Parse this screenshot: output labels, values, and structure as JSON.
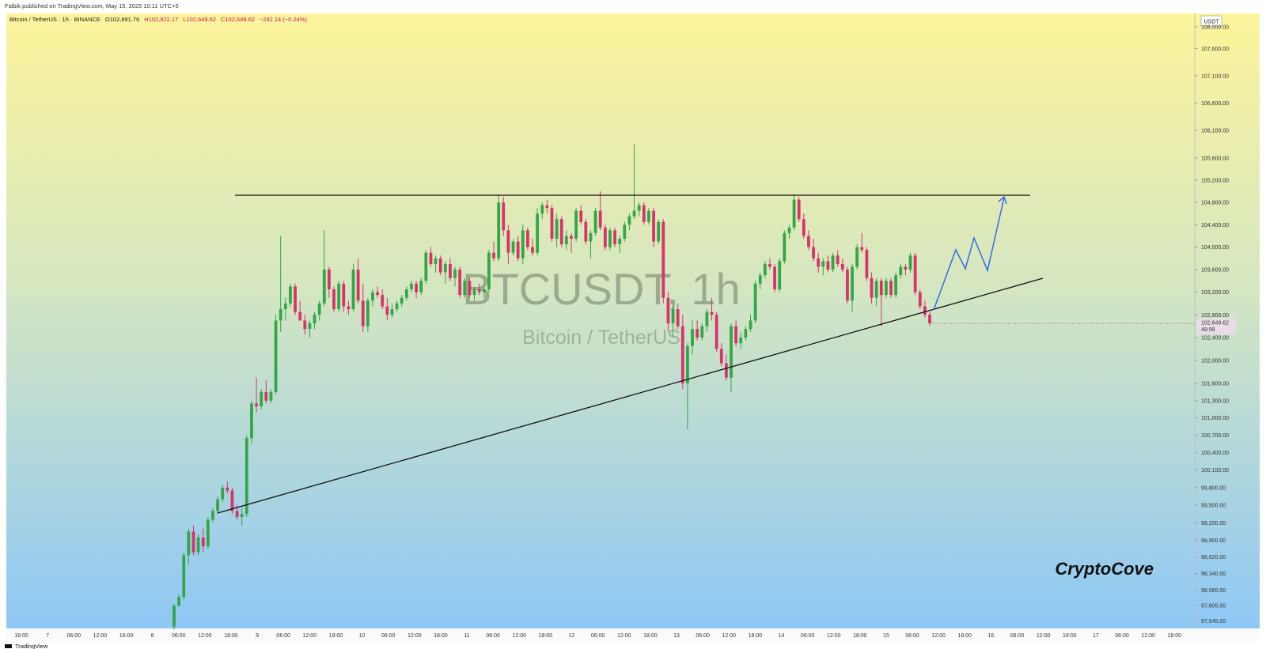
{
  "header": "Falbik published on TradingView.com, May 15, 2025 10:11 UTC+5",
  "footer": "TradingView",
  "chart_data": {
    "type": "candlestick",
    "title": "Bitcoin / TetherUS · 1h · BINANCE",
    "ohlc_text": [
      "O102,891.76",
      "H102,922.17",
      "L102,649.62",
      "C102,649.62",
      "−242.14 (−0.24%)"
    ],
    "watermark": "BTCUSDT, 1h",
    "watermark_sub": "Bitcoin / TetherUS",
    "brand": "CryptoCove",
    "currency": "USDT",
    "last_price": {
      "value": 102649.62,
      "label": "102,649.62"
    },
    "countdown": "48:58",
    "up_color": "#33a745",
    "down_color": "#d8336b",
    "log_scale": true,
    "ylim": [
      97420,
      108250
    ],
    "yticks": [
      {
        "value": 108000,
        "label": "108,000.00"
      },
      {
        "value": 107600,
        "label": "107,600.00"
      },
      {
        "value": 107100,
        "label": "107,100.00"
      },
      {
        "value": 106600,
        "label": "106,600.00"
      },
      {
        "value": 106100,
        "label": "106,100.00"
      },
      {
        "value": 105600,
        "label": "105,600.00"
      },
      {
        "value": 105200,
        "label": "105,200.00"
      },
      {
        "value": 104800,
        "label": "104,800.00"
      },
      {
        "value": 104400,
        "label": "104,400.00"
      },
      {
        "value": 104000,
        "label": "104,000.00"
      },
      {
        "value": 103600,
        "label": "103,600.00"
      },
      {
        "value": 103200,
        "label": "103,200.00"
      },
      {
        "value": 102800,
        "label": "102,800.00"
      },
      {
        "value": 102400,
        "label": "102,400.00"
      },
      {
        "value": 102000,
        "label": "102,000.00"
      },
      {
        "value": 101600,
        "label": "101,600.00"
      },
      {
        "value": 101300,
        "label": "101,300.00"
      },
      {
        "value": 101000,
        "label": "101,000.00"
      },
      {
        "value": 100700,
        "label": "100,700.00"
      },
      {
        "value": 100400,
        "label": "100,400.00"
      },
      {
        "value": 100100,
        "label": "100,100.00"
      },
      {
        "value": 99800,
        "label": "99,800.00"
      },
      {
        "value": 99500,
        "label": "99,500.00"
      },
      {
        "value": 99200,
        "label": "99,200.00"
      },
      {
        "value": 98900,
        "label": "98,900.00"
      },
      {
        "value": 98620,
        "label": "98,620.00"
      },
      {
        "value": 98340,
        "label": "98,340.00"
      },
      {
        "value": 98065,
        "label": "98,065.00"
      },
      {
        "value": 97805,
        "label": "97,805.00"
      },
      {
        "value": 97545,
        "label": "97,545.00"
      }
    ],
    "categories": [
      "18:00",
      "7",
      "06:00",
      "12:00",
      "18:00",
      "8",
      "06:00",
      "12:00",
      "18:00",
      "9",
      "06:00",
      "12:00",
      "18:00",
      "10",
      "06:00",
      "12:00",
      "18:00",
      "11",
      "06:00",
      "12:00",
      "18:00",
      "12",
      "06:00",
      "12:00",
      "18:00",
      "13",
      "06:00",
      "12:00",
      "18:00",
      "14",
      "06:00",
      "12:00",
      "18:00",
      "15",
      "06:00",
      "12:00",
      "18:00",
      "16",
      "06:00",
      "12:00",
      "18:00",
      "17",
      "06:00",
      "12:00",
      "18:00"
    ],
    "ohlc": [
      [
        97450,
        97830,
        97400,
        97800
      ],
      [
        97800,
        98000,
        97780,
        97950
      ],
      [
        97950,
        98700,
        97900,
        98650
      ],
      [
        98650,
        99100,
        98500,
        99050
      ],
      [
        99050,
        99150,
        98650,
        98700
      ],
      [
        98700,
        99000,
        98650,
        98950
      ],
      [
        98950,
        99100,
        98700,
        98800
      ],
      [
        98800,
        99300,
        98750,
        99250
      ],
      [
        99250,
        99450,
        99200,
        99400
      ],
      [
        99400,
        99650,
        99350,
        99600
      ],
      [
        99600,
        99850,
        99550,
        99800
      ],
      [
        99800,
        99900,
        99700,
        99750
      ],
      [
        99750,
        99800,
        99350,
        99400
      ],
      [
        99400,
        99500,
        99250,
        99300
      ],
      [
        99300,
        99450,
        99150,
        99350
      ],
      [
        99350,
        100700,
        99300,
        100650
      ],
      [
        100650,
        101300,
        100550,
        101250
      ],
      [
        101250,
        101700,
        101100,
        101200
      ],
      [
        101200,
        101500,
        101150,
        101450
      ],
      [
        101450,
        101650,
        101250,
        101300
      ],
      [
        101300,
        101500,
        101250,
        101450
      ],
      [
        101450,
        102800,
        101400,
        102700
      ],
      [
        102700,
        104200,
        102500,
        102900
      ],
      [
        102900,
        103100,
        102700,
        103000
      ],
      [
        103000,
        103350,
        102950,
        103300
      ],
      [
        103300,
        103350,
        102800,
        102850
      ],
      [
        102850,
        103050,
        102700,
        102700
      ],
      [
        102700,
        102800,
        102450,
        102550
      ],
      [
        102550,
        102700,
        102400,
        102650
      ],
      [
        102650,
        102850,
        102550,
        102800
      ],
      [
        102800,
        103050,
        102700,
        103000
      ],
      [
        103000,
        104300,
        102950,
        103600
      ],
      [
        103600,
        103650,
        103100,
        103250
      ],
      [
        103250,
        103300,
        102850,
        102900
      ],
      [
        102900,
        103400,
        102850,
        103350
      ],
      [
        103350,
        103400,
        102850,
        102950
      ],
      [
        102950,
        103050,
        102800,
        102900
      ],
      [
        102900,
        103700,
        102850,
        103600
      ],
      [
        103600,
        103800,
        103000,
        103050
      ],
      [
        103050,
        103350,
        102500,
        102600
      ],
      [
        102600,
        103100,
        102500,
        103050
      ],
      [
        103050,
        103250,
        102950,
        103200
      ],
      [
        103200,
        103300,
        103100,
        103150
      ],
      [
        103150,
        103250,
        102900,
        102950
      ],
      [
        102950,
        103100,
        102700,
        102800
      ],
      [
        102800,
        103000,
        102750,
        102900
      ],
      [
        102900,
        103050,
        102850,
        103000
      ],
      [
        103000,
        103150,
        102950,
        103100
      ],
      [
        103100,
        103300,
        103050,
        103250
      ],
      [
        103250,
        103400,
        103200,
        103350
      ],
      [
        103350,
        103400,
        103100,
        103200
      ],
      [
        103200,
        103450,
        103150,
        103400
      ],
      [
        103400,
        103950,
        103350,
        103900
      ],
      [
        103900,
        104000,
        103650,
        103700
      ],
      [
        103700,
        103850,
        103550,
        103800
      ],
      [
        103800,
        103850,
        103500,
        103550
      ],
      [
        103550,
        103750,
        103350,
        103700
      ],
      [
        103700,
        103800,
        103400,
        103450
      ],
      [
        103450,
        103650,
        103300,
        103600
      ],
      [
        103600,
        103650,
        103100,
        103150
      ],
      [
        103150,
        103450,
        103100,
        103400
      ],
      [
        103400,
        103450,
        103100,
        103150
      ],
      [
        103150,
        103300,
        103050,
        103250
      ],
      [
        103250,
        103350,
        103150,
        103200
      ],
      [
        103200,
        103300,
        103100,
        103250
      ],
      [
        103250,
        103950,
        103200,
        103900
      ],
      [
        103900,
        104100,
        103750,
        103800
      ],
      [
        103800,
        104950,
        103750,
        104800
      ],
      [
        104800,
        104900,
        104200,
        104300
      ],
      [
        104300,
        104400,
        103700,
        103900
      ],
      [
        103900,
        104150,
        103850,
        104100
      ],
      [
        104100,
        104200,
        103750,
        103800
      ],
      [
        103800,
        104400,
        103700,
        104300
      ],
      [
        104300,
        104350,
        103950,
        104000
      ],
      [
        104000,
        104150,
        103850,
        103900
      ],
      [
        103900,
        104700,
        103850,
        104600
      ],
      [
        104600,
        104800,
        104500,
        104750
      ],
      [
        104750,
        104850,
        104600,
        104700
      ],
      [
        104700,
        104750,
        104100,
        104150
      ],
      [
        104150,
        104600,
        104000,
        104500
      ],
      [
        104500,
        104550,
        104000,
        104050
      ],
      [
        104050,
        104300,
        103950,
        104200
      ],
      [
        104200,
        104250,
        103900,
        104150
      ],
      [
        104150,
        104700,
        104100,
        104650
      ],
      [
        104650,
        104750,
        104400,
        104450
      ],
      [
        104450,
        104500,
        104050,
        104100
      ],
      [
        104100,
        104300,
        103800,
        104250
      ],
      [
        104250,
        104700,
        104200,
        104650
      ],
      [
        104650,
        105000,
        104300,
        104350
      ],
      [
        104350,
        104400,
        103950,
        104000
      ],
      [
        104000,
        104350,
        103950,
        104300
      ],
      [
        104300,
        104350,
        104000,
        104050
      ],
      [
        104050,
        104200,
        103900,
        104150
      ],
      [
        104150,
        104450,
        104100,
        104400
      ],
      [
        104400,
        104600,
        104300,
        104550
      ],
      [
        104550,
        105850,
        104500,
        104650
      ],
      [
        104650,
        104800,
        104550,
        104750
      ],
      [
        104750,
        104800,
        104400,
        104450
      ],
      [
        104450,
        104700,
        104400,
        104650
      ],
      [
        104650,
        104700,
        104000,
        104100
      ],
      [
        104100,
        104500,
        104050,
        104450
      ],
      [
        104450,
        104500,
        103000,
        103100
      ],
      [
        103100,
        103200,
        102500,
        102650
      ],
      [
        102650,
        102950,
        102400,
        102900
      ],
      [
        102900,
        103000,
        102550,
        102600
      ],
      [
        102600,
        102800,
        101500,
        101600
      ],
      [
        101600,
        102300,
        100800,
        102250
      ],
      [
        102250,
        102700,
        102100,
        102550
      ],
      [
        102550,
        102700,
        102350,
        102400
      ],
      [
        102400,
        102650,
        102350,
        102600
      ],
      [
        102600,
        102900,
        102500,
        102850
      ],
      [
        102850,
        103100,
        102700,
        102800
      ],
      [
        102800,
        102850,
        102150,
        102200
      ],
      [
        102200,
        102300,
        101900,
        101950
      ],
      [
        101950,
        102100,
        101650,
        101700
      ],
      [
        101700,
        102650,
        101450,
        102600
      ],
      [
        102600,
        102700,
        102250,
        102300
      ],
      [
        102300,
        102500,
        102200,
        102400
      ],
      [
        102400,
        102600,
        102350,
        102550
      ],
      [
        102550,
        102800,
        102500,
        102700
      ],
      [
        102700,
        103400,
        102650,
        103350
      ],
      [
        103350,
        103550,
        103250,
        103500
      ],
      [
        103500,
        103750,
        103450,
        103700
      ],
      [
        103700,
        103800,
        103600,
        103650
      ],
      [
        103650,
        103700,
        103200,
        103250
      ],
      [
        103250,
        103800,
        103200,
        103750
      ],
      [
        103750,
        104300,
        103700,
        104250
      ],
      [
        104250,
        104400,
        104150,
        104350
      ],
      [
        104350,
        104950,
        104300,
        104850
      ],
      [
        104850,
        104900,
        104450,
        104500
      ],
      [
        104500,
        104600,
        104150,
        104200
      ],
      [
        104200,
        104300,
        103950,
        104000
      ],
      [
        104000,
        104150,
        103750,
        103800
      ],
      [
        103800,
        103900,
        103550,
        103650
      ],
      [
        103650,
        103800,
        103500,
        103750
      ],
      [
        103750,
        103850,
        103550,
        103600
      ],
      [
        103600,
        103900,
        103550,
        103850
      ],
      [
        103850,
        103950,
        103650,
        103700
      ],
      [
        103700,
        103800,
        103550,
        103600
      ],
      [
        103600,
        103650,
        103000,
        103050
      ],
      [
        103050,
        103700,
        102850,
        103650
      ],
      [
        103650,
        104050,
        103600,
        104000
      ],
      [
        104000,
        104250,
        103900,
        103950
      ],
      [
        103950,
        104000,
        103400,
        103450
      ],
      [
        103450,
        103550,
        103000,
        103100
      ],
      [
        103100,
        103450,
        102950,
        103400
      ],
      [
        103400,
        103450,
        102600,
        103150
      ],
      [
        103150,
        103450,
        103100,
        103400
      ],
      [
        103400,
        103450,
        103100,
        103150
      ],
      [
        103150,
        103550,
        103100,
        103500
      ],
      [
        103500,
        103700,
        103450,
        103650
      ],
      [
        103650,
        103700,
        103500,
        103600
      ],
      [
        103600,
        103900,
        103550,
        103850
      ],
      [
        103850,
        103900,
        103150,
        103200
      ],
      [
        103200,
        103250,
        102900,
        102950
      ],
      [
        102950,
        103050,
        102750,
        102800
      ],
      [
        102800,
        102850,
        102600,
        102650
      ]
    ]
  }
}
